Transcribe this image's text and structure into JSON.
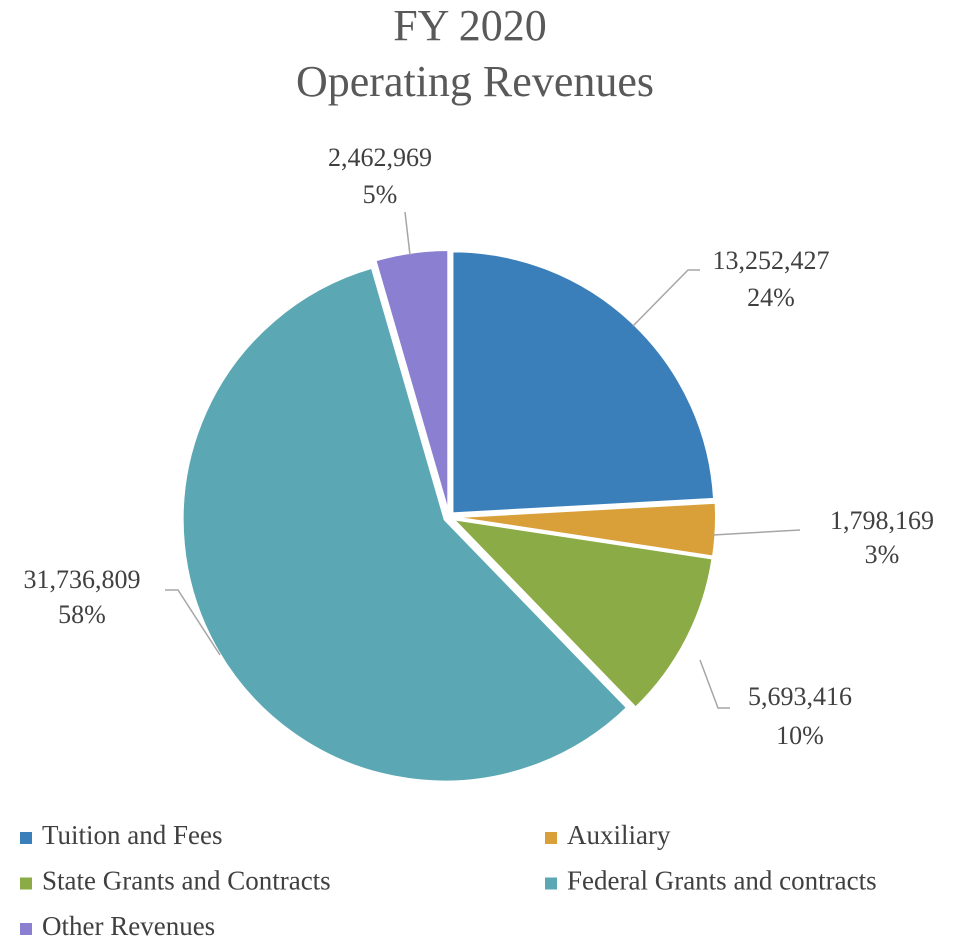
{
  "chart_data": {
    "type": "pie",
    "title": [
      "FY 2020",
      "Operating Revenues"
    ],
    "categories": [
      "Tuition and Fees",
      "Auxiliary",
      "State Grants and Contracts",
      "Federal Grants and contracts",
      "Other Revenues"
    ],
    "values": [
      13252427,
      1798169,
      5693416,
      31736809,
      2462969
    ],
    "value_labels": [
      "13,252,427",
      "1,798,169",
      "5,693,416",
      "31,736,809",
      "2,462,969"
    ],
    "percent_labels": [
      "24%",
      "3%",
      "10%",
      "58%",
      "5%"
    ],
    "colors": [
      "#3a7fba",
      "#d9a03a",
      "#8aab45",
      "#5ba8b4",
      "#8a7fd0"
    ],
    "legend": "bottom"
  }
}
